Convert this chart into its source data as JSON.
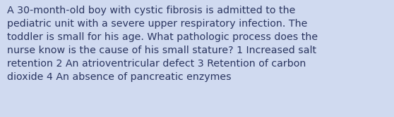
{
  "background_color": "#d0daf0",
  "text_color": "#2a3560",
  "text": "A 30-month-old boy with cystic fibrosis is admitted to the\npediatric unit with a severe upper respiratory infection. The\ntoddler is small for his age. What pathologic process does the\nnurse know is the cause of his small stature? 1 Increased salt\nretention 2 An atrioventricular defect 3 Retention of carbon\ndioxide 4 An absence of pancreatic enzymes",
  "font_size": 10.2,
  "fig_width": 5.58,
  "fig_height": 1.67,
  "dpi": 100
}
